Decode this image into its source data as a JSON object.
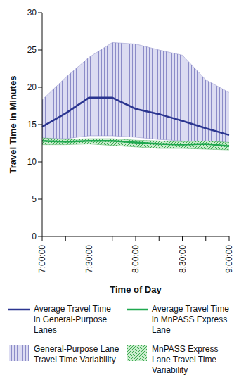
{
  "chart_data": {
    "type": "line",
    "x_label": "Time of Day",
    "y_label": "Travel Time in Minutes",
    "categories": [
      "7:00:00",
      null,
      "7:30:00",
      null,
      "8:00:00",
      null,
      "8:30:00",
      null,
      "9:00:00"
    ],
    "ylim": [
      0,
      30
    ],
    "yticks": [
      0,
      5,
      10,
      15,
      20,
      25,
      30
    ],
    "grid": false,
    "legend": "bottom",
    "series": [
      {
        "name": "Average Travel Time in General-Purpose Lanes",
        "type": "line",
        "line_style": "solid",
        "color": "#2b3590",
        "values": [
          14.7,
          16.5,
          18.6,
          18.6,
          17.1,
          16.4,
          15.5,
          14.5,
          13.6
        ]
      },
      {
        "name": "Average Travel Time in MnPASS Express Lane",
        "type": "line",
        "line_style": "solid",
        "color": "#1fa84f",
        "values": [
          12.8,
          12.7,
          12.8,
          12.8,
          12.6,
          12.4,
          12.3,
          12.4,
          12.1
        ]
      },
      {
        "name": "General-Purpose Lane Travel Time Variability",
        "type": "area",
        "color": "#8c8cc8",
        "values": [
          [
            13.2,
            18.3
          ],
          [
            13.1,
            21.3
          ],
          [
            13.5,
            24.0
          ],
          [
            13.5,
            26.0
          ],
          [
            13.3,
            25.8
          ],
          [
            13.0,
            25.0
          ],
          [
            12.8,
            24.3
          ],
          [
            12.6,
            21.0
          ],
          [
            12.3,
            19.3
          ]
        ]
      },
      {
        "name": "MnPASS Express Lane Travel Time Variability",
        "type": "area",
        "color": "#3caa50",
        "values": [
          [
            12.3,
            13.2
          ],
          [
            12.3,
            13.0
          ],
          [
            12.4,
            13.1
          ],
          [
            12.2,
            13.1
          ],
          [
            12.0,
            12.9
          ],
          [
            11.8,
            12.8
          ],
          [
            11.8,
            12.7
          ],
          [
            11.7,
            12.8
          ],
          [
            11.6,
            12.6
          ]
        ]
      }
    ]
  }
}
